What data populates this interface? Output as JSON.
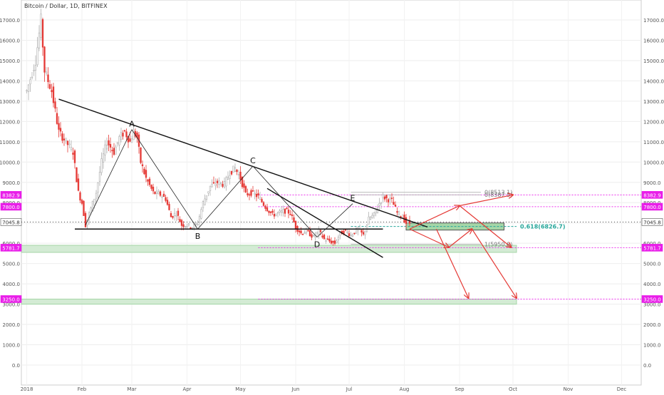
{
  "chart_data": {
    "type": "candlestick",
    "title": "Bitcoin / Dollar, 1D, BITFINEX",
    "xlabel": "",
    "ylabel": "",
    "ylim": [
      -1000,
      18300
    ],
    "y_ticks": [
      0,
      1000,
      2000,
      3000,
      4000,
      5000,
      6000,
      7000,
      8000,
      9000,
      10000,
      11000,
      12000,
      13000,
      14000,
      15000,
      16000,
      17000
    ],
    "x_ticks": [
      {
        "label": "2018",
        "t": 0
      },
      {
        "label": "Feb",
        "t": 31
      },
      {
        "label": "Mar",
        "t": 59
      },
      {
        "label": "Apr",
        "t": 90
      },
      {
        "label": "May",
        "t": 120
      },
      {
        "label": "Jun",
        "t": 151
      },
      {
        "label": "Jul",
        "t": 181
      },
      {
        "label": "Aug",
        "t": 212
      },
      {
        "label": "Sep",
        "t": 243
      },
      {
        "label": "Oct",
        "t": 273
      },
      {
        "label": "Nov",
        "t": 304
      },
      {
        "label": "Dec",
        "t": 334
      }
    ],
    "x_range_days": [
      -3,
      345
    ],
    "grid": true,
    "price_path": [
      [
        0,
        13500
      ],
      [
        5,
        15000
      ],
      [
        8,
        17000
      ],
      [
        10,
        14500
      ],
      [
        14,
        13500
      ],
      [
        18,
        11500
      ],
      [
        22,
        11000
      ],
      [
        26,
        10500
      ],
      [
        29,
        8500
      ],
      [
        31,
        8000
      ],
      [
        33,
        6900
      ],
      [
        36,
        7700
      ],
      [
        39,
        8500
      ],
      [
        42,
        10000
      ],
      [
        45,
        11000
      ],
      [
        49,
        10500
      ],
      [
        52,
        11200
      ],
      [
        55,
        11500
      ],
      [
        58,
        11000
      ],
      [
        60,
        11500
      ],
      [
        62,
        11200
      ],
      [
        64,
        10000
      ],
      [
        67,
        9200
      ],
      [
        71,
        8500
      ],
      [
        75,
        8400
      ],
      [
        78,
        8200
      ],
      [
        81,
        7300
      ],
      [
        84,
        7500
      ],
      [
        87,
        6900
      ],
      [
        90,
        6900
      ],
      [
        93,
        6800
      ],
      [
        96,
        7000
      ],
      [
        99,
        8000
      ],
      [
        103,
        8800
      ],
      [
        107,
        9000
      ],
      [
        111,
        8900
      ],
      [
        114,
        9500
      ],
      [
        117,
        9700
      ],
      [
        120,
        9200
      ],
      [
        123,
        8400
      ],
      [
        126,
        8500
      ],
      [
        130,
        8300
      ],
      [
        134,
        7800
      ],
      [
        138,
        7400
      ],
      [
        142,
        7500
      ],
      [
        145,
        7600
      ],
      [
        148,
        7500
      ],
      [
        151,
        6800
      ],
      [
        154,
        6500
      ],
      [
        157,
        6600
      ],
      [
        161,
        6300
      ],
      [
        164,
        6600
      ],
      [
        167,
        6200
      ],
      [
        170,
        6100
      ],
      [
        173,
        6000
      ],
      [
        176,
        6500
      ],
      [
        179,
        6600
      ],
      [
        182,
        6400
      ],
      [
        186,
        6700
      ],
      [
        189,
        6400
      ],
      [
        192,
        7200
      ],
      [
        195,
        7400
      ],
      [
        197,
        7800
      ],
      [
        200,
        8300
      ],
      [
        202,
        8200
      ],
      [
        205,
        8100
      ],
      [
        208,
        7500
      ],
      [
        211,
        7300
      ],
      [
        213,
        7000
      ],
      [
        215,
        7000
      ]
    ],
    "pattern_points": [
      {
        "label": "A",
        "t": 59,
        "value": 11600
      },
      {
        "label": "B",
        "t": 96,
        "value": 6700
      },
      {
        "label": "C",
        "t": 127,
        "value": 9800
      },
      {
        "label": "D",
        "t": 163,
        "value": 6300
      },
      {
        "label": "E",
        "t": 183,
        "value": 7950
      }
    ],
    "trendlines": [
      {
        "name": "descending-resistance",
        "from": [
          18,
          13100
        ],
        "to": [
          225,
          6800
        ]
      },
      {
        "name": "horizontal-support",
        "from": [
          27,
          6700
        ],
        "to": [
          200,
          6700
        ]
      },
      {
        "name": "lower-channel",
        "from": [
          135,
          8700
        ],
        "to": [
          200,
          5300
        ]
      }
    ],
    "horizontal_levels": [
      {
        "value": 8382.9,
        "label": "8382.9",
        "color": "#e91ee9"
      },
      {
        "value": 7800.0,
        "label": "7800.0",
        "color": "#e91ee9"
      },
      {
        "value": 7045.8,
        "label": "7045.8",
        "color": "#333333"
      },
      {
        "value": 5781.7,
        "label": "5781.7",
        "color": "#e91ee9"
      },
      {
        "value": 3250.0,
        "label": "3250.0",
        "color": "#e91ee9"
      }
    ],
    "support_zones": [
      {
        "from": 5550,
        "to": 5900
      },
      {
        "from": 3000,
        "to": 3250
      }
    ],
    "fib_labels": [
      {
        "text": "0(8513.1)",
        "value": 8513.1,
        "color": "#777777"
      },
      {
        "text": "0(8387.5)",
        "value": 8387.5,
        "color": "#777777"
      },
      {
        "text": "0.618(6826.7)",
        "value": 6826.7,
        "color": "#26a69a"
      },
      {
        "text": "1(5950.8)",
        "value": 5950.8,
        "color": "#777777"
      }
    ],
    "projection_arrows": [
      [
        [
          215,
          6700
        ],
        [
          243,
          7850
        ]
      ],
      [
        [
          243,
          7850
        ],
        [
          273,
          8382.9
        ]
      ],
      [
        [
          215,
          6700
        ],
        [
          237,
          5800
        ]
      ],
      [
        [
          237,
          5800
        ],
        [
          250,
          6700
        ]
      ],
      [
        [
          243,
          7850
        ],
        [
          272,
          5800
        ]
      ],
      [
        [
          230,
          6700
        ],
        [
          248,
          3300
        ]
      ],
      [
        [
          250,
          6700
        ],
        [
          275,
          3300
        ]
      ]
    ]
  }
}
